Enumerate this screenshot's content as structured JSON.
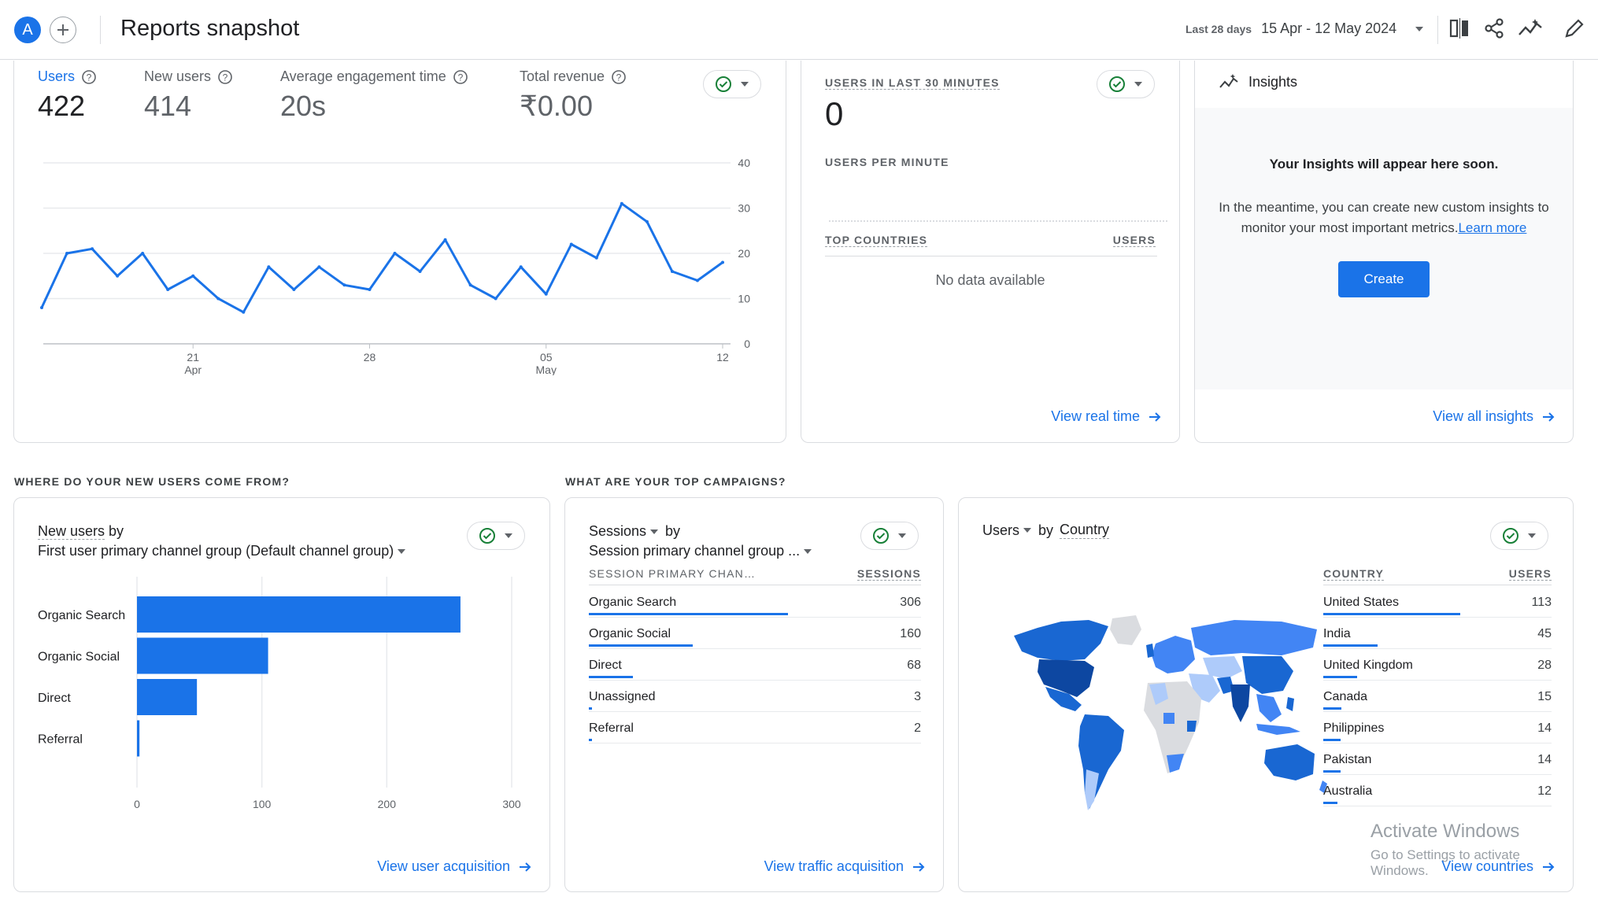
{
  "header": {
    "avatar_letter": "A",
    "title": "Reports snapshot",
    "date_range_label": "Last 28 days",
    "date_range": "15 Apr - 12 May 2024"
  },
  "metrics": [
    {
      "label": "Users",
      "value": "422"
    },
    {
      "label": "New users",
      "value": "414"
    },
    {
      "label": "Average engagement time",
      "value": "20s"
    },
    {
      "label": "Total revenue",
      "value": "₹0.00"
    }
  ],
  "users_chart": {
    "y_ticks": [
      "40",
      "30",
      "20",
      "10",
      "0"
    ],
    "x_ticks": [
      {
        "day": "21",
        "month": "Apr"
      },
      {
        "day": "28",
        "month": ""
      },
      {
        "day": "05",
        "month": "May"
      },
      {
        "day": "12",
        "month": ""
      }
    ]
  },
  "chart_data": [
    {
      "type": "line",
      "x": [
        "15 Apr",
        "16 Apr",
        "17 Apr",
        "18 Apr",
        "19 Apr",
        "20 Apr",
        "21 Apr",
        "22 Apr",
        "23 Apr",
        "24 Apr",
        "25 Apr",
        "26 Apr",
        "27 Apr",
        "28 Apr",
        "29 Apr",
        "30 Apr",
        "01 May",
        "02 May",
        "03 May",
        "04 May",
        "05 May",
        "06 May",
        "07 May",
        "08 May",
        "09 May",
        "10 May",
        "11 May",
        "12 May"
      ],
      "series": [
        {
          "values": [
            8,
            20,
            21,
            15,
            20,
            12,
            15,
            10,
            7,
            17,
            12,
            17,
            13,
            12,
            20,
            16,
            23,
            13,
            10,
            17,
            11,
            22,
            19,
            31,
            27,
            16,
            14,
            18
          ]
        }
      ],
      "ylim": [
        0,
        40
      ]
    },
    {
      "type": "bar",
      "orientation": "horizontal",
      "categories": [
        "Organic Search",
        "Organic Social",
        "Direct",
        "Referral"
      ],
      "values": [
        259,
        105,
        48,
        2
      ],
      "xlim": [
        0,
        300
      ]
    }
  ],
  "realtime": {
    "title": "USERS IN LAST 30 MINUTES",
    "value": "0",
    "per_minute_label": "USERS PER MINUTE",
    "top_countries_label": "TOP COUNTRIES",
    "users_label": "USERS",
    "no_data": "No data available",
    "link": "View real time"
  },
  "insights": {
    "title": "Insights",
    "heading": "Your Insights will appear here soon.",
    "body": "In the meantime, you can create new custom insights to monitor your most important metrics.",
    "learn_more": "Learn more",
    "create_button": "Create",
    "link": "View all insights"
  },
  "acquisition": {
    "section_title": "WHERE DO YOUR NEW USERS COME FROM?",
    "metric": "New users",
    "by": "by",
    "dimension": "First user primary channel group (Default channel group)",
    "x_ticks": [
      "0",
      "100",
      "200",
      "300"
    ],
    "link": "View user acquisition"
  },
  "campaigns": {
    "section_title": "WHAT ARE YOUR TOP CAMPAIGNS?",
    "metric": "Sessions",
    "by": "by",
    "dimension": "Session primary channel group ...",
    "col_dim": "SESSION PRIMARY CHAN…",
    "col_metric": "SESSIONS",
    "rows": [
      {
        "name": "Organic Search",
        "value": "306",
        "share": 1.0
      },
      {
        "name": "Organic Social",
        "value": "160",
        "share": 0.523
      },
      {
        "name": "Direct",
        "value": "68",
        "share": 0.222
      },
      {
        "name": "Unassigned",
        "value": "3",
        "share": 0.01
      },
      {
        "name": "Referral",
        "value": "2",
        "share": 0.007
      }
    ],
    "link": "View traffic acquisition"
  },
  "countries": {
    "metric": "Users",
    "by": "by",
    "dimension": "Country",
    "col_dim": "COUNTRY",
    "col_metric": "USERS",
    "rows": [
      {
        "name": "United States",
        "value": "113",
        "share": 1.0
      },
      {
        "name": "India",
        "value": "45",
        "share": 0.398
      },
      {
        "name": "United Kingdom",
        "value": "28",
        "share": 0.248
      },
      {
        "name": "Canada",
        "value": "15",
        "share": 0.133
      },
      {
        "name": "Philippines",
        "value": "14",
        "share": 0.124
      },
      {
        "name": "Pakistan",
        "value": "14",
        "share": 0.124
      },
      {
        "name": "Australia",
        "value": "12",
        "share": 0.106
      }
    ],
    "link": "View countries"
  },
  "watermark": {
    "title": "Activate Windows",
    "subtitle": "Go to Settings to activate Windows."
  },
  "colors": {
    "accent": "#1a73e8",
    "check": "#188038",
    "map_dark": "#1967d2",
    "map_mid": "#4285f4",
    "map_light": "#aecbfa",
    "map_none": "#dadce0"
  }
}
